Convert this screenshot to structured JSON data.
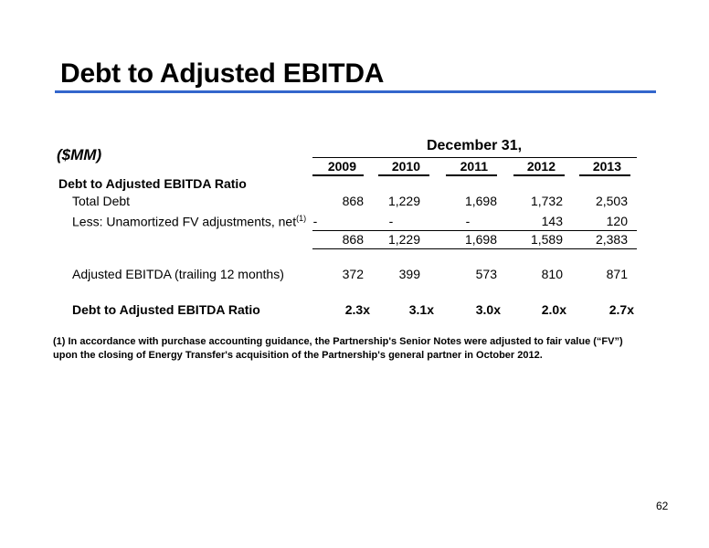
{
  "title": "Debt to Adjusted EBITDA",
  "units": "($MM)",
  "period_header": "December 31,",
  "years": [
    "2009",
    "2010",
    "2011",
    "2012",
    "2013"
  ],
  "section_header": "Debt to Adjusted EBITDA Ratio",
  "rows": {
    "total_debt": {
      "label": "Total Debt",
      "values": [
        "868",
        "1,229",
        "1,698",
        "1,732",
        "2,503"
      ]
    },
    "fv_adjust": {
      "label": "Less: Unamortized FV adjustments, net",
      "note_ref": "(1)",
      "values": [
        "-",
        "-",
        "-",
        "143",
        "120"
      ]
    },
    "subtotal": {
      "values": [
        "868",
        "1,229",
        "1,698",
        "1,589",
        "2,383"
      ]
    },
    "ebitda": {
      "label": "Adjusted EBITDA (trailing 12 months)",
      "values": [
        "372",
        "399",
        "573",
        "810",
        "871"
      ]
    },
    "ratio": {
      "label": "Debt to Adjusted EBITDA Ratio",
      "values": [
        "2.3x",
        "3.1x",
        "3.0x",
        "2.0x",
        "2.7x"
      ]
    }
  },
  "footnote": {
    "line1": "(1)  In accordance with purchase accounting guidance, the Partnership's Senior Notes were adjusted to fair value (“FV”)",
    "line2": "upon the closing of Energy Transfer's acquisition of the Partnership's general partner in October 2012."
  },
  "page_number": "62",
  "colors": {
    "accent_rule": "#3366cc"
  }
}
